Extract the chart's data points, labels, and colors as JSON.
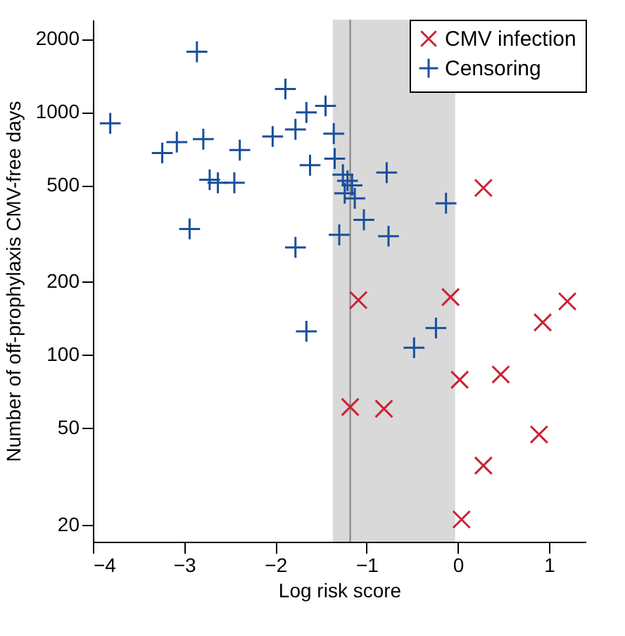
{
  "chart_data": {
    "type": "scatter",
    "xlabel": "Log risk score",
    "ylabel": "Number of off-prophylaxis CMV-free days",
    "xlim": [
      -4,
      1.4
    ],
    "xticks": [
      -4,
      -3,
      -2,
      -1,
      0,
      1
    ],
    "ylim": [
      17,
      2400
    ],
    "yticks": [
      20,
      50,
      100,
      200,
      500,
      1000,
      2000
    ],
    "log": "y",
    "grid": false,
    "legend": "top right",
    "bands": [
      {
        "axis": "x",
        "from": -1.37,
        "to": -0.03,
        "color": "#d9d9d9"
      }
    ],
    "ref_lines": [
      {
        "axis": "x",
        "value": -1.18,
        "color": "#808080"
      }
    ],
    "series": [
      {
        "name": "CMV infection",
        "color": "#cc2233",
        "marker": "x",
        "x": [
          0.28,
          -1.09,
          -0.08,
          1.2,
          0.93,
          0.02,
          0.47,
          -1.18,
          -0.81,
          0.89,
          0.28,
          0.04
        ],
        "values": [
          487,
          168,
          173,
          166,
          136,
          79,
          83,
          61,
          60,
          47,
          35,
          21
        ]
      },
      {
        "name": "Censoring",
        "color": "#1a4f9c",
        "marker": "cross",
        "x": [
          -3.81,
          -2.86,
          -3.24,
          -3.08,
          -2.79,
          -2.72,
          -2.63,
          -2.45,
          -2.39,
          -2.94,
          -2.03,
          -1.89,
          -1.78,
          -1.66,
          -1.45,
          -1.36,
          -1.62,
          -1.35,
          -1.78,
          -1.3,
          -1.26,
          -1.21,
          -1.16,
          -1.24,
          -1.13,
          -1.03,
          -0.78,
          -0.76,
          -0.13,
          -1.66,
          -0.48,
          -0.24
        ],
        "values": [
          898,
          1771,
          678,
          752,
          773,
          526,
          511,
          511,
          697,
          330,
          793,
          1244,
          848,
          996,
          1060,
          815,
          604,
          643,
          277,
          312,
          552,
          521,
          499,
          463,
          441,
          360,
          563,
          308,
          421,
          125,
          107,
          129
        ]
      }
    ]
  }
}
